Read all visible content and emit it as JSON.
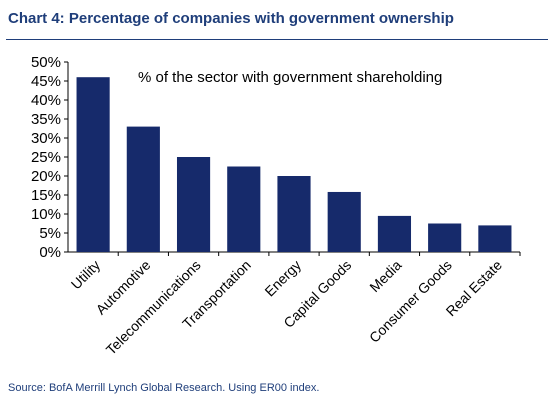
{
  "page": {
    "title": "Chart 4: Percentage of companies with government ownership",
    "source": "Source: BofA Merrill Lynch Global Research. Using ER00 index."
  },
  "chart_data": {
    "type": "bar",
    "annotation": "% of the sector with government shareholding",
    "categories": [
      "Utility",
      "Automotive",
      "Telecommunications",
      "Transportation",
      "Energy",
      "Capital Goods",
      "Media",
      "Consumer Goods",
      "Real Estate"
    ],
    "values": [
      46,
      33,
      25,
      22.5,
      20,
      15.8,
      9.5,
      7.5,
      7
    ],
    "yticks": [
      "0%",
      "5%",
      "10%",
      "15%",
      "20%",
      "25%",
      "30%",
      "35%",
      "40%",
      "45%",
      "50%"
    ],
    "ylim": [
      0,
      50
    ],
    "grid": false,
    "bar_color": "#162a6b"
  }
}
